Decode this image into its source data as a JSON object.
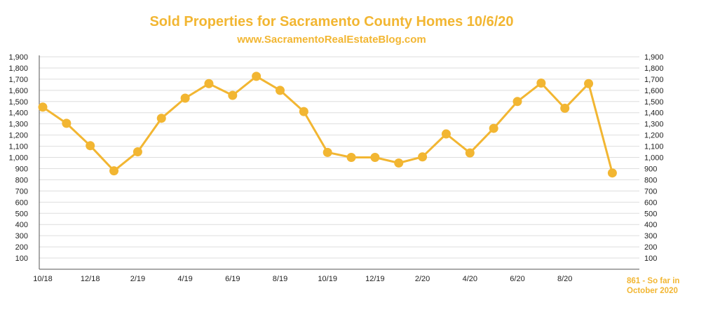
{
  "chart_data": {
    "type": "line",
    "title": "Sold Properties for Sacramento County Homes 10/6/20",
    "subtitle": "www.SacramentoRealEstateBlog.com",
    "series": [
      {
        "name": "Sold Properties",
        "values": [
          1450,
          1305,
          1105,
          880,
          1050,
          1350,
          1530,
          1660,
          1555,
          1725,
          1600,
          1410,
          1045,
          1000,
          1000,
          950,
          1005,
          1210,
          1040,
          1260,
          1500,
          1665,
          1440,
          1660,
          861
        ]
      }
    ],
    "x_tick_labels": [
      "10/18",
      "12/18",
      "2/19",
      "4/19",
      "6/19",
      "8/19",
      "10/19",
      "12/19",
      "2/20",
      "4/20",
      "6/20",
      "8/20"
    ],
    "y_tick_labels": [
      "100",
      "200",
      "300",
      "400",
      "500",
      "600",
      "700",
      "800",
      "900",
      "1,000",
      "1,100",
      "1,200",
      "1,300",
      "1,400",
      "1,500",
      "1,600",
      "1,700",
      "1,800",
      "1,900"
    ],
    "ylim": [
      0,
      1900
    ],
    "color": "#f2b632",
    "annotation": [
      "861 - So far in",
      "October 2020"
    ]
  }
}
